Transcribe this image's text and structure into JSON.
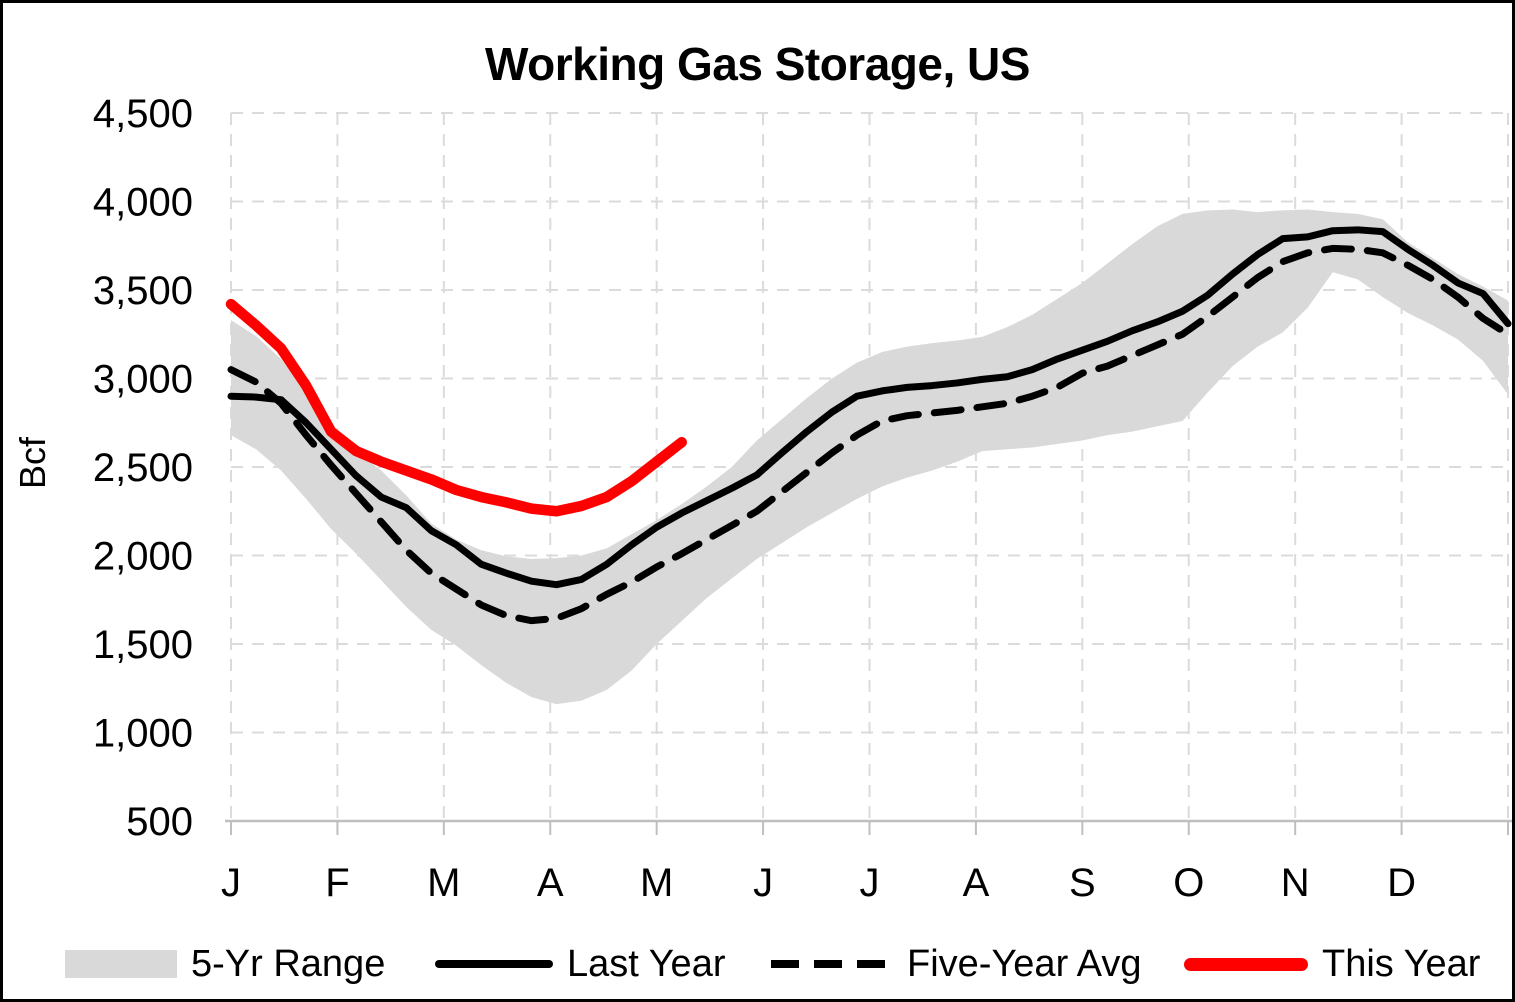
{
  "chart_data": {
    "type": "line",
    "title": "Working Gas Storage, US",
    "ylabel": "Bcf",
    "ylim": [
      500,
      4500
    ],
    "ytick_step": 500,
    "ytick_labels": [
      "500",
      "1,000",
      "1,500",
      "2,000",
      "2,500",
      "3,000",
      "3,500",
      "4,000",
      "4,500"
    ],
    "grid": true,
    "legend_position": "bottom",
    "x_axis": {
      "tick_labels": [
        "J",
        "F",
        "M",
        "A",
        "M",
        "J",
        "J",
        "A",
        "S",
        "O",
        "N",
        "D"
      ],
      "description": "weekly data points, January through December (52 weeks)"
    },
    "colors": {
      "range_fill": "#D9D9D9",
      "last_year": "#000000",
      "five_year_avg": "#000000",
      "this_year": "#FF0000",
      "gridline": "#DBDBDB",
      "axis_line": "#BFBFBF"
    },
    "series": [
      {
        "name": "5-Yr Range",
        "type": "area-band",
        "color": "#D9D9D9",
        "max": [
          3330,
          3240,
          3110,
          2930,
          2700,
          2590,
          2480,
          2340,
          2180,
          2090,
          2030,
          1995,
          1980,
          1985,
          2000,
          2040,
          2120,
          2200,
          2290,
          2390,
          2500,
          2650,
          2770,
          2890,
          3000,
          3090,
          3150,
          3180,
          3200,
          3215,
          3235,
          3290,
          3360,
          3450,
          3540,
          3650,
          3760,
          3860,
          3930,
          3950,
          3955,
          3940,
          3950,
          3955,
          3940,
          3930,
          3900,
          3770,
          3680,
          3590,
          3520,
          3440
        ],
        "min": [
          2680,
          2600,
          2480,
          2320,
          2150,
          2010,
          1860,
          1710,
          1580,
          1490,
          1380,
          1280,
          1200,
          1160,
          1180,
          1240,
          1350,
          1500,
          1630,
          1760,
          1870,
          1980,
          2070,
          2160,
          2240,
          2320,
          2390,
          2440,
          2480,
          2530,
          2590,
          2600,
          2610,
          2630,
          2650,
          2680,
          2700,
          2730,
          2760,
          2920,
          3070,
          3180,
          3260,
          3400,
          3600,
          3560,
          3460,
          3370,
          3300,
          3220,
          3100,
          2910
        ]
      },
      {
        "name": "Last Year",
        "type": "line",
        "dash": "solid",
        "color": "#000000",
        "values": [
          2900,
          2895,
          2880,
          2750,
          2600,
          2450,
          2330,
          2270,
          2140,
          2060,
          1950,
          1900,
          1855,
          1835,
          1865,
          1950,
          2060,
          2160,
          2240,
          2310,
          2380,
          2455,
          2580,
          2700,
          2810,
          2900,
          2930,
          2950,
          2960,
          2975,
          2995,
          3010,
          3050,
          3110,
          3160,
          3210,
          3270,
          3320,
          3380,
          3470,
          3590,
          3700,
          3790,
          3800,
          3835,
          3840,
          3830,
          3730,
          3640,
          3540,
          3480,
          3310
        ]
      },
      {
        "name": "Five-Year Avg",
        "type": "line",
        "dash": "dashed",
        "color": "#000000",
        "values": [
          3050,
          2980,
          2860,
          2680,
          2510,
          2350,
          2190,
          2030,
          1900,
          1810,
          1720,
          1660,
          1632,
          1645,
          1700,
          1780,
          1850,
          1935,
          2010,
          2090,
          2170,
          2250,
          2360,
          2470,
          2580,
          2680,
          2760,
          2790,
          2805,
          2820,
          2840,
          2860,
          2900,
          2950,
          3030,
          3070,
          3130,
          3190,
          3250,
          3350,
          3460,
          3570,
          3660,
          3710,
          3735,
          3730,
          3710,
          3640,
          3560,
          3460,
          3340,
          3250
        ]
      },
      {
        "name": "This Year",
        "type": "line",
        "dash": "solid",
        "color": "#FF0000",
        "values": [
          3420,
          3300,
          3170,
          2960,
          2700,
          2590,
          2530,
          2480,
          2430,
          2370,
          2330,
          2300,
          2265,
          2250,
          2280,
          2330,
          2420,
          2530,
          2640
        ],
        "note": "partial year, ends mid-May"
      }
    ]
  }
}
